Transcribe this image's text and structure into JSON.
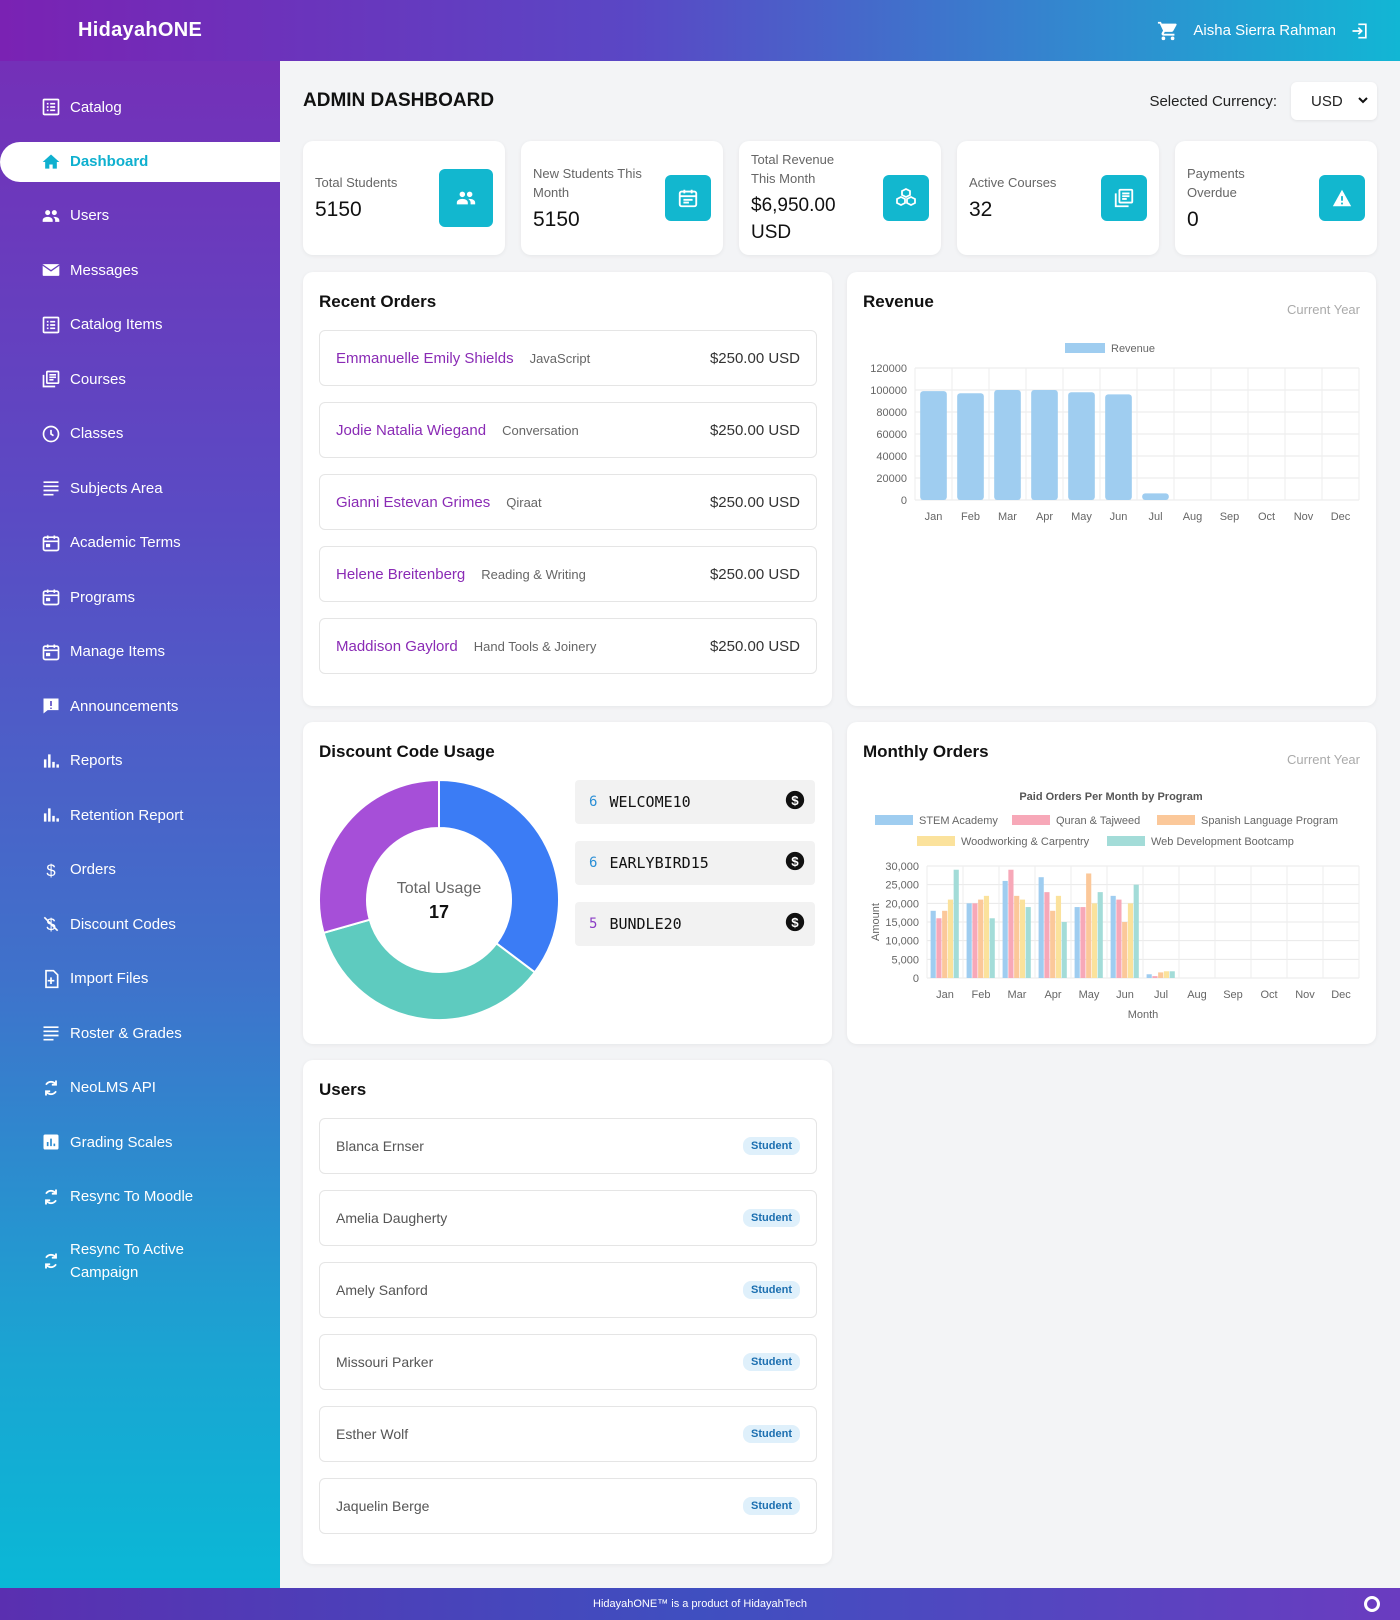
{
  "brand": "HidayahONE",
  "user": {
    "name": "Aisha Sierra Rahman"
  },
  "icons": {
    "cart": "cart-icon",
    "logout": "logout-icon"
  },
  "sidebar": {
    "items": [
      {
        "label": "Catalog",
        "icon": "catalog-icon"
      },
      {
        "label": "Dashboard",
        "icon": "home-icon"
      },
      {
        "label": "Users",
        "icon": "users-icon"
      },
      {
        "label": "Messages",
        "icon": "mail-icon"
      },
      {
        "label": "Catalog Items",
        "icon": "list-icon"
      },
      {
        "label": "Courses",
        "icon": "courses-icon"
      },
      {
        "label": "Classes",
        "icon": "clock-icon"
      },
      {
        "label": "Subjects Area",
        "icon": "lines-icon"
      },
      {
        "label": "Academic Terms",
        "icon": "calendar-icon"
      },
      {
        "label": "Programs",
        "icon": "calendar-icon"
      },
      {
        "label": "Manage Items",
        "icon": "calendar-icon"
      },
      {
        "label": "Announcements",
        "icon": "announcement-icon"
      },
      {
        "label": "Reports",
        "icon": "bar-chart-icon"
      },
      {
        "label": "Retention Report",
        "icon": "bar-chart-icon"
      },
      {
        "label": "Orders",
        "icon": "dollar-icon"
      },
      {
        "label": "Discount Codes",
        "icon": "discount-icon"
      },
      {
        "label": "Import Files",
        "icon": "file-import-icon"
      },
      {
        "label": "Roster & Grades",
        "icon": "lines-icon"
      },
      {
        "label": "NeoLMS API",
        "icon": "sync-icon"
      },
      {
        "label": "Grading Scales",
        "icon": "chart-box-icon"
      },
      {
        "label": "Resync To Moodle",
        "icon": "sync-icon"
      },
      {
        "label": "Resync To Active Campaign",
        "icon": "sync-icon"
      }
    ],
    "active_index": 1
  },
  "header": {
    "title": "ADMIN DASHBOARD",
    "currency_label": "Selected Currency:",
    "currency_value": "USD"
  },
  "stats": [
    {
      "label": "Total Students",
      "value": "5150",
      "icon": "users-icon"
    },
    {
      "label": "New Students This Month",
      "value": "5150",
      "icon": "calendar-icon"
    },
    {
      "label": "Total Revenue This Month",
      "value": "$6,950.00 USD",
      "icon": "cubes-icon"
    },
    {
      "label": "Active Courses",
      "value": "32",
      "icon": "courses-icon"
    },
    {
      "label": "Payments Overdue",
      "value": "0",
      "icon": "warning-icon"
    }
  ],
  "recent_orders": {
    "title": "Recent Orders",
    "rows": [
      {
        "name": "Emmanuelle Emily Shields",
        "course": "JavaScript",
        "price": "$250.00 USD"
      },
      {
        "name": "Jodie Natalia Wiegand",
        "course": "Conversation",
        "price": "$250.00 USD"
      },
      {
        "name": "Gianni Estevan Grimes",
        "course": "Qiraat",
        "price": "$250.00 USD"
      },
      {
        "name": "Helene Breitenberg",
        "course": "Reading & Writing",
        "price": "$250.00 USD"
      },
      {
        "name": "Maddison Gaylord",
        "course": "Hand Tools & Joinery",
        "price": "$250.00 USD"
      }
    ]
  },
  "revenue": {
    "title": "Revenue",
    "subtitle": "Current Year"
  },
  "discount": {
    "title": "Discount Code Usage",
    "center_label": "Total Usage",
    "total": "17",
    "codes": [
      {
        "count": "6",
        "code": "WELCOME10",
        "color": "#3b7cf5"
      },
      {
        "count": "6",
        "code": "EARLYBIRD15",
        "color": "#5ecbbf"
      },
      {
        "count": "5",
        "code": "BUNDLE20",
        "color": "#a64fd8"
      }
    ]
  },
  "monthly_orders": {
    "title": "Monthly Orders",
    "subtitle": "Current Year"
  },
  "users_card": {
    "title": "Users",
    "rows": [
      {
        "name": "Blanca Ernser",
        "role": "Student"
      },
      {
        "name": "Amelia Daugherty",
        "role": "Student"
      },
      {
        "name": "Amely Sanford",
        "role": "Student"
      },
      {
        "name": "Missouri Parker",
        "role": "Student"
      },
      {
        "name": "Esther Wolf",
        "role": "Student"
      },
      {
        "name": "Jaquelin Berge",
        "role": "Student"
      }
    ]
  },
  "footer": {
    "text": "HidayahONE™ is a product of HidayahTech"
  },
  "chart_data": [
    {
      "type": "bar",
      "title": "",
      "categories": [
        "Jan",
        "Feb",
        "Mar",
        "Apr",
        "May",
        "Jun",
        "Jul",
        "Aug",
        "Sep",
        "Oct",
        "Nov",
        "Dec"
      ],
      "series": [
        {
          "name": "Revenue",
          "values": [
            99000,
            97000,
            100000,
            100000,
            98000,
            96000,
            6000,
            0,
            0,
            0,
            0,
            0
          ],
          "color": "#9fcdf0"
        }
      ],
      "yticks": [
        "0",
        "20000",
        "40000",
        "60000",
        "80000",
        "100000",
        "120000"
      ],
      "ylim": [
        0,
        120000
      ],
      "legend": "top"
    },
    {
      "type": "bar",
      "title": "Paid Orders Per Month by Program",
      "xlabel": "Month",
      "ylabel": "Amount",
      "categories": [
        "Jan",
        "Feb",
        "Mar",
        "Apr",
        "May",
        "Jun",
        "Jul",
        "Aug",
        "Sep",
        "Oct",
        "Nov",
        "Dec"
      ],
      "series": [
        {
          "name": "STEM Academy",
          "color": "#9fcdf0",
          "values": [
            18000,
            20000,
            26000,
            27000,
            19000,
            22000,
            1000,
            0,
            0,
            0,
            0,
            0
          ]
        },
        {
          "name": "Quran & Tajweed",
          "color": "#f7a8b8",
          "values": [
            16000,
            20000,
            29000,
            23000,
            19000,
            21000,
            500,
            0,
            0,
            0,
            0,
            0
          ]
        },
        {
          "name": "Spanish Language Program",
          "color": "#fbc89a",
          "values": [
            18000,
            21000,
            22000,
            18000,
            28000,
            15000,
            1500,
            0,
            0,
            0,
            0,
            0
          ]
        },
        {
          "name": "Woodworking & Carpentry",
          "color": "#fbe29c",
          "values": [
            21000,
            22000,
            21000,
            22000,
            20000,
            20000,
            1800,
            0,
            0,
            0,
            0,
            0
          ]
        },
        {
          "name": "Web Development Bootcamp",
          "color": "#a3dcd8",
          "values": [
            29000,
            16000,
            19000,
            15000,
            23000,
            25000,
            1800,
            0,
            0,
            0,
            0,
            0
          ]
        }
      ],
      "yticks": [
        "0",
        "5,000",
        "10,000",
        "15,000",
        "20,000",
        "25,000",
        "30,000"
      ],
      "ylim": [
        0,
        30000
      ],
      "legend": "top"
    }
  ]
}
